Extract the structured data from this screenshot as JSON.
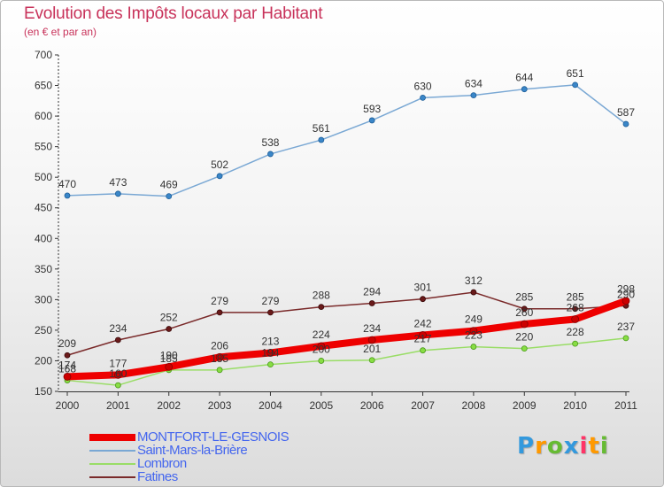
{
  "chart_data": {
    "type": "line",
    "title": "Evolution des Impôts locaux par Habitant",
    "subtitle": "(en € et par an)",
    "xlabel": "",
    "ylabel": "",
    "x": [
      "2000",
      "2001",
      "2002",
      "2003",
      "2004",
      "2005",
      "2006",
      "2007",
      "2008",
      "2009",
      "2010",
      "2011"
    ],
    "ylim": [
      150,
      700
    ],
    "yticks": [
      150,
      200,
      250,
      300,
      350,
      400,
      450,
      500,
      550,
      600,
      650,
      700
    ],
    "grid": false,
    "legend_position": "bottom-left",
    "series": [
      {
        "name": "MONTFORT-LE-GESNOIS",
        "color": "#ee0000",
        "values": [
          174,
          177,
          190,
          206,
          213,
          224,
          234,
          242,
          249,
          260,
          268,
          298
        ],
        "labels": [
          "174",
          "177",
          "190",
          "206",
          "213",
          "224",
          "234",
          "242",
          "249",
          "260",
          "268",
          "298"
        ]
      },
      {
        "name": "Saint-Mars-la-Brière",
        "color": "#7aa8d4",
        "values": [
          470,
          473,
          469,
          502,
          538,
          561,
          593,
          630,
          634,
          644,
          651,
          587
        ],
        "labels": [
          "470",
          "473",
          "469",
          "502",
          "538",
          "561",
          "593",
          "630",
          "634",
          "644",
          "651",
          "587"
        ]
      },
      {
        "name": "Lombron",
        "color": "#99dd66",
        "values": [
          168,
          160,
          185,
          185,
          194,
          200,
          201,
          217,
          223,
          220,
          228,
          237
        ],
        "labels": [
          "168",
          "160",
          "185",
          "185",
          "194",
          "200",
          "201",
          "217",
          "223",
          "220",
          "228",
          "237"
        ]
      },
      {
        "name": "Fatines",
        "color": "#7a2a2a",
        "values": [
          209,
          234,
          252,
          279,
          279,
          288,
          294,
          301,
          312,
          285,
          285,
          290
        ],
        "labels": [
          "209",
          "234",
          "252",
          "279",
          "279",
          "288",
          "294",
          "301",
          "312",
          "285",
          "285",
          "290"
        ]
      }
    ]
  },
  "branding": {
    "logo_letters": [
      "P",
      "r",
      "o",
      "x",
      "i",
      "t",
      "i"
    ],
    "logo_colors": [
      "#3399dd",
      "#ff9900",
      "#66bb33",
      "#3399dd",
      "#ff3366",
      "#ff9900",
      "#66bb33"
    ]
  }
}
